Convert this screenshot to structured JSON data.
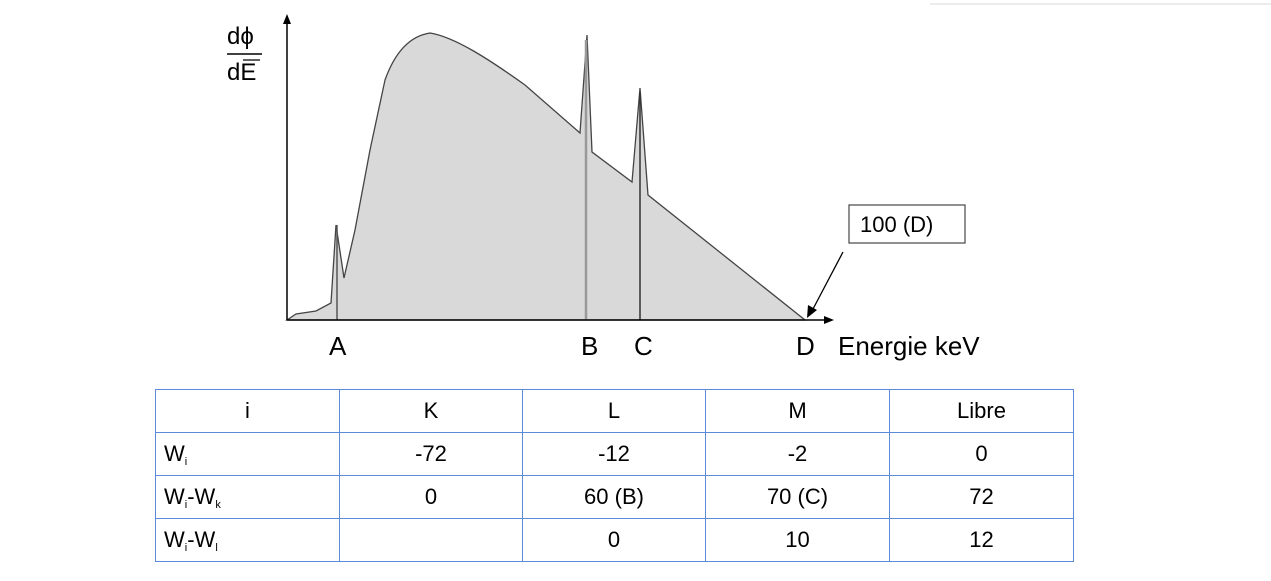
{
  "diagram": {
    "y_label_top": "dϕ",
    "y_label_bottom": "dE",
    "x_label": "Energie keV",
    "points": [
      "A",
      "B",
      "C",
      "D"
    ],
    "callout": "100 (D)",
    "fill_color": "#d9d9d9"
  },
  "table": {
    "header": [
      "i",
      "K",
      "L",
      "M",
      "Libre"
    ],
    "rows": [
      {
        "label": "W",
        "sub1": "i",
        "sep": "",
        "sub2": "",
        "cells": [
          "-72",
          "-12",
          "-2",
          "0"
        ]
      },
      {
        "label": "W",
        "sub1": "i",
        "sep": "-W",
        "sub2": "k",
        "cells": [
          "0",
          "60 (B)",
          "70 (C)",
          "72"
        ]
      },
      {
        "label": "W",
        "sub1": "i",
        "sep": "-W",
        "sub2": "l",
        "cells": [
          "",
          "0",
          "10",
          "12"
        ]
      }
    ],
    "border_color": "#5b8bd6"
  }
}
